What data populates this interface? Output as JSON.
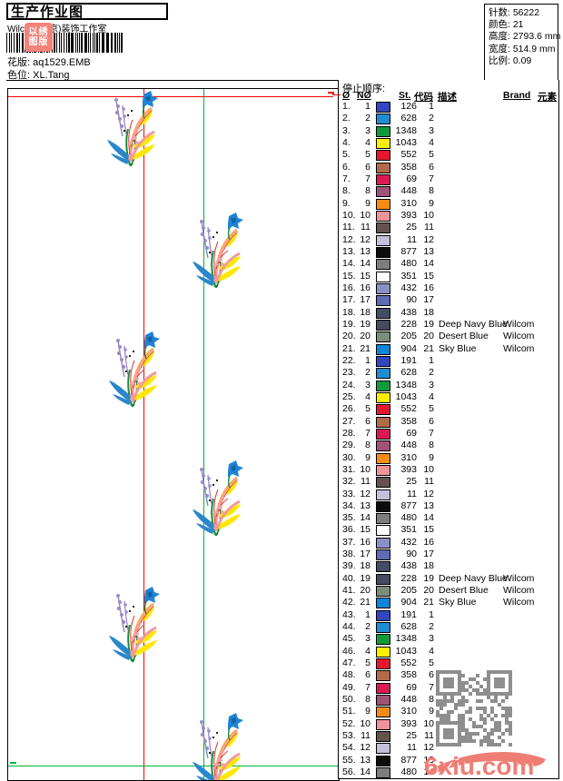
{
  "page": {
    "title": "生产作业图",
    "subtitle": "Wilcom(汇京)装饰工作室",
    "pattern_label": "花版:",
    "pattern_value": "aq1529.EMB",
    "colorway_label": "色位:",
    "colorway_value": "XL.Tang"
  },
  "info_panel": {
    "items": [
      {
        "label": "针数:",
        "value": "56222"
      },
      {
        "label": "颜色:",
        "value": "21"
      },
      {
        "label": "高度:",
        "value": "2793.6 mm"
      },
      {
        "label": "宽度:",
        "value": "514.9 mm"
      },
      {
        "label": "比例:",
        "value": "0.09"
      }
    ]
  },
  "sequence_table": {
    "stop_order_label": "停止顺序:",
    "columns": [
      "Ø",
      "NØ",
      "St.",
      "代码",
      "描述",
      "Brand",
      "元素"
    ],
    "thread_palette": {
      "1": "#3246bd",
      "2": "#1f8cd2",
      "3": "#12993b",
      "4": "#fcee00",
      "5": "#e6182e",
      "6": "#b26a49",
      "7": "#da1a52",
      "8": "#9e5377",
      "9": "#f68c16",
      "10": "#ef939b",
      "11": "#64524f",
      "12": "#c6bfda",
      "13": "#0c0c0c",
      "14": "#7d7d7d",
      "15": "#ffffff",
      "16": "#8f8fc7",
      "17": "#5f6cb4",
      "18": "#454c63",
      "19": "#444a60",
      "20": "#7d8d7b",
      "21": "#0a85d7"
    },
    "rows": [
      [
        1,
        1,
        126,
        1,
        "",
        ""
      ],
      [
        2,
        2,
        628,
        2,
        "",
        ""
      ],
      [
        3,
        3,
        1348,
        3,
        "",
        ""
      ],
      [
        4,
        4,
        1043,
        4,
        "",
        ""
      ],
      [
        5,
        5,
        552,
        5,
        "",
        ""
      ],
      [
        6,
        6,
        358,
        6,
        "",
        ""
      ],
      [
        7,
        7,
        69,
        7,
        "",
        ""
      ],
      [
        8,
        8,
        448,
        8,
        "",
        ""
      ],
      [
        9,
        9,
        310,
        9,
        "",
        ""
      ],
      [
        10,
        10,
        393,
        10,
        "",
        ""
      ],
      [
        11,
        11,
        25,
        11,
        "",
        ""
      ],
      [
        12,
        12,
        11,
        12,
        "",
        ""
      ],
      [
        13,
        13,
        877,
        13,
        "",
        ""
      ],
      [
        14,
        14,
        480,
        14,
        "",
        ""
      ],
      [
        15,
        15,
        351,
        15,
        "",
        ""
      ],
      [
        16,
        16,
        432,
        16,
        "",
        ""
      ],
      [
        17,
        17,
        90,
        17,
        "",
        ""
      ],
      [
        18,
        18,
        438,
        18,
        "",
        ""
      ],
      [
        19,
        19,
        228,
        19,
        "Deep Navy Blue",
        "Wilcom"
      ],
      [
        20,
        20,
        205,
        20,
        "Desert Blue",
        "Wilcom"
      ],
      [
        21,
        21,
        904,
        21,
        "Sky Blue",
        "Wilcom"
      ],
      [
        22,
        1,
        191,
        1,
        "",
        ""
      ],
      [
        23,
        2,
        628,
        2,
        "",
        ""
      ],
      [
        24,
        3,
        1348,
        3,
        "",
        ""
      ],
      [
        25,
        4,
        1043,
        4,
        "",
        ""
      ],
      [
        26,
        5,
        552,
        5,
        "",
        ""
      ],
      [
        27,
        6,
        358,
        6,
        "",
        ""
      ],
      [
        28,
        7,
        69,
        7,
        "",
        ""
      ],
      [
        29,
        8,
        448,
        8,
        "",
        ""
      ],
      [
        30,
        9,
        310,
        9,
        "",
        ""
      ],
      [
        31,
        10,
        393,
        10,
        "",
        ""
      ],
      [
        32,
        11,
        25,
        11,
        "",
        ""
      ],
      [
        33,
        12,
        11,
        12,
        "",
        ""
      ],
      [
        34,
        13,
        877,
        13,
        "",
        ""
      ],
      [
        35,
        14,
        480,
        14,
        "",
        ""
      ],
      [
        36,
        15,
        351,
        15,
        "",
        ""
      ],
      [
        37,
        16,
        432,
        16,
        "",
        ""
      ],
      [
        38,
        17,
        90,
        17,
        "",
        ""
      ],
      [
        39,
        18,
        438,
        18,
        "",
        ""
      ],
      [
        40,
        19,
        228,
        19,
        "Deep Navy Blue",
        "Wilcom"
      ],
      [
        41,
        20,
        205,
        20,
        "Desert Blue",
        "Wilcom"
      ],
      [
        42,
        21,
        904,
        21,
        "Sky Blue",
        "Wilcom"
      ],
      [
        43,
        1,
        191,
        1,
        "",
        ""
      ],
      [
        44,
        2,
        628,
        2,
        "",
        ""
      ],
      [
        45,
        3,
        1348,
        3,
        "",
        ""
      ],
      [
        46,
        4,
        1043,
        4,
        "",
        ""
      ],
      [
        47,
        5,
        552,
        5,
        "",
        ""
      ],
      [
        48,
        6,
        358,
        6,
        "",
        ""
      ],
      [
        49,
        7,
        69,
        7,
        "",
        ""
      ],
      [
        50,
        8,
        448,
        8,
        "",
        ""
      ],
      [
        51,
        9,
        310,
        9,
        "",
        ""
      ],
      [
        52,
        10,
        393,
        10,
        "",
        ""
      ],
      [
        53,
        11,
        25,
        11,
        "",
        ""
      ],
      [
        54,
        12,
        11,
        12,
        "",
        ""
      ],
      [
        55,
        13,
        877,
        13,
        "",
        ""
      ],
      [
        56,
        14,
        480,
        14,
        "",
        ""
      ]
    ]
  },
  "design_preview": {
    "guide_red": "#ff0000",
    "guide_green": "#00b43c",
    "motif_repeats": 6
  },
  "watermark": {
    "site_text": "6xiu.com",
    "color": "#ee7e74",
    "qr_gray": "#8e8e8e",
    "stamp_color": "#f2837b",
    "stamp_lines": [
      "以绣",
      "图版"
    ]
  }
}
